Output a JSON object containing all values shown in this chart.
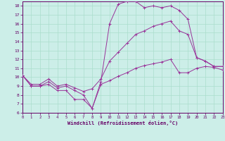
{
  "xlabel": "Windchill (Refroidissement éolien,°C)",
  "bg_color": "#cceee8",
  "grid_color": "#aaddcc",
  "line_color": "#993399",
  "xlim": [
    0,
    23
  ],
  "ylim": [
    6,
    18.5
  ],
  "xticks": [
    0,
    1,
    2,
    3,
    4,
    5,
    6,
    7,
    8,
    9,
    10,
    11,
    12,
    13,
    14,
    15,
    16,
    17,
    18,
    19,
    20,
    21,
    22,
    23
  ],
  "yticks": [
    6,
    7,
    8,
    9,
    10,
    11,
    12,
    13,
    14,
    15,
    16,
    17,
    18
  ],
  "line1_x": [
    0,
    1,
    2,
    3,
    4,
    5,
    6,
    7,
    8,
    9,
    10,
    11,
    12,
    13,
    14,
    15,
    16,
    17,
    18,
    19,
    20,
    21,
    22,
    23
  ],
  "line1_y": [
    10.2,
    9.0,
    9.0,
    9.2,
    8.5,
    8.5,
    7.5,
    7.5,
    6.5,
    9.2,
    9.6,
    10.1,
    10.5,
    11.0,
    11.3,
    11.5,
    11.7,
    12.0,
    10.5,
    10.5,
    11.0,
    11.2,
    11.1,
    10.8
  ],
  "line2_x": [
    0,
    1,
    2,
    3,
    4,
    5,
    6,
    7,
    8,
    9,
    10,
    11,
    12,
    13,
    14,
    15,
    16,
    17,
    18,
    19,
    20,
    21,
    22,
    23
  ],
  "line2_y": [
    10.2,
    9.2,
    9.2,
    9.8,
    9.0,
    9.2,
    8.8,
    8.4,
    8.7,
    9.8,
    11.8,
    12.8,
    13.8,
    14.8,
    15.2,
    15.7,
    16.0,
    16.3,
    15.2,
    14.8,
    12.2,
    11.8,
    11.2,
    11.2
  ],
  "line3_x": [
    0,
    1,
    2,
    3,
    4,
    5,
    6,
    7,
    8,
    9,
    10,
    11,
    12,
    13,
    14,
    15,
    16,
    17,
    18,
    19,
    20,
    21,
    22,
    23
  ],
  "line3_y": [
    10.2,
    9.0,
    9.0,
    9.5,
    8.8,
    9.0,
    8.5,
    8.0,
    6.5,
    9.5,
    16.0,
    18.2,
    18.5,
    18.5,
    17.8,
    18.0,
    17.8,
    18.0,
    17.5,
    16.5,
    12.2,
    11.8,
    11.2,
    11.2
  ],
  "xlabel_color": "#660066",
  "tick_color": "#660066",
  "spine_color": "#660066"
}
